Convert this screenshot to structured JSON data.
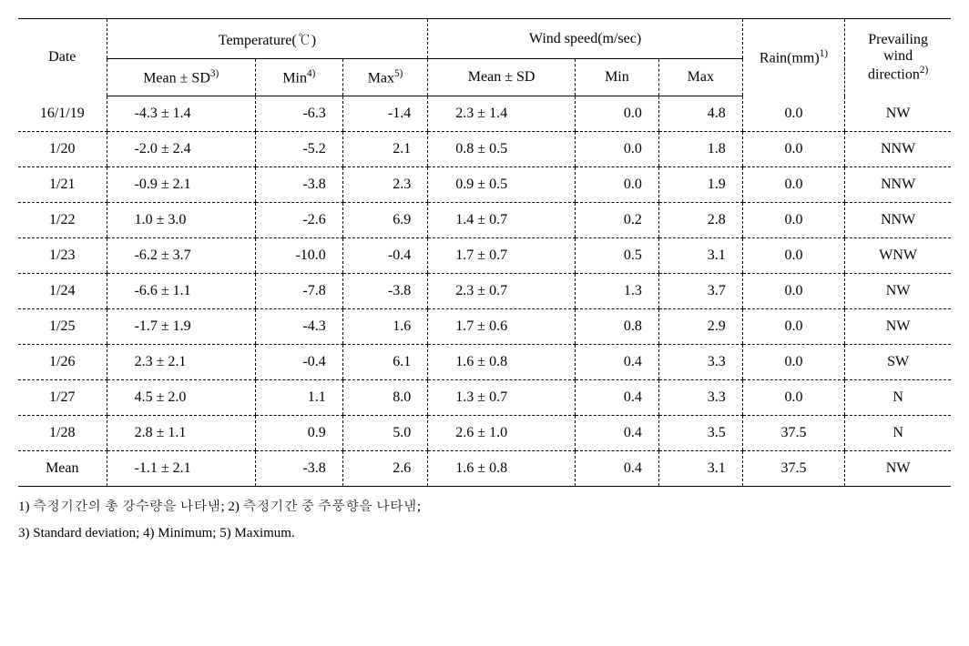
{
  "headers": {
    "date": "Date",
    "temperature_group": "Temperature(℃)",
    "windspeed_group": "Wind speed(m/sec)",
    "meansd_temp": "Mean ± SD",
    "meansd_temp_sup": "3)",
    "min_temp": "Min",
    "min_temp_sup": "4)",
    "max_temp": "Max",
    "max_temp_sup": "5)",
    "meansd_wind": "Mean ± SD",
    "min_wind": "Min",
    "max_wind": "Max",
    "rain": "Rain(mm)",
    "rain_sup": "1)",
    "wind_dir_line1": "Prevailing",
    "wind_dir_line2": "wind",
    "wind_dir_line3": "direction",
    "wind_dir_sup": "2)"
  },
  "rows": [
    {
      "date": "16/1/19",
      "t_mean": "-4.3 ± 1.4",
      "t_min": "-6.3",
      "t_max": "-1.4",
      "w_mean": "2.3 ± 1.4",
      "w_min": "0.0",
      "w_max": "4.8",
      "rain": "0.0",
      "dir": "NW"
    },
    {
      "date": "1/20",
      "t_mean": "-2.0 ± 2.4",
      "t_min": "-5.2",
      "t_max": "2.1",
      "w_mean": "0.8 ± 0.5",
      "w_min": "0.0",
      "w_max": "1.8",
      "rain": "0.0",
      "dir": "NNW"
    },
    {
      "date": "1/21",
      "t_mean": "-0.9 ± 2.1",
      "t_min": "-3.8",
      "t_max": "2.3",
      "w_mean": "0.9 ± 0.5",
      "w_min": "0.0",
      "w_max": "1.9",
      "rain": "0.0",
      "dir": "NNW"
    },
    {
      "date": "1/22",
      "t_mean": "1.0 ± 3.0",
      "t_min": "-2.6",
      "t_max": "6.9",
      "w_mean": "1.4 ± 0.7",
      "w_min": "0.2",
      "w_max": "2.8",
      "rain": "0.0",
      "dir": "NNW"
    },
    {
      "date": "1/23",
      "t_mean": "-6.2 ± 3.7",
      "t_min": "-10.0",
      "t_max": "-0.4",
      "w_mean": "1.7 ± 0.7",
      "w_min": "0.5",
      "w_max": "3.1",
      "rain": "0.0",
      "dir": "WNW"
    },
    {
      "date": "1/24",
      "t_mean": "-6.6 ± 1.1",
      "t_min": "-7.8",
      "t_max": "-3.8",
      "w_mean": "2.3 ± 0.7",
      "w_min": "1.3",
      "w_max": "3.7",
      "rain": "0.0",
      "dir": "NW"
    },
    {
      "date": "1/25",
      "t_mean": "-1.7 ± 1.9",
      "t_min": "-4.3",
      "t_max": "1.6",
      "w_mean": "1.7 ± 0.6",
      "w_min": "0.8",
      "w_max": "2.9",
      "rain": "0.0",
      "dir": "NW"
    },
    {
      "date": "1/26",
      "t_mean": "2.3 ± 2.1",
      "t_min": "-0.4",
      "t_max": "6.1",
      "w_mean": "1.6 ± 0.8",
      "w_min": "0.4",
      "w_max": "3.3",
      "rain": "0.0",
      "dir": "SW"
    },
    {
      "date": "1/27",
      "t_mean": "4.5 ± 2.0",
      "t_min": "1.1",
      "t_max": "8.0",
      "w_mean": "1.3 ± 0.7",
      "w_min": "0.4",
      "w_max": "3.3",
      "rain": "0.0",
      "dir": "N"
    },
    {
      "date": "1/28",
      "t_mean": "2.8 ± 1.1",
      "t_min": "0.9",
      "t_max": "5.0",
      "w_mean": "2.6 ± 1.0",
      "w_min": "0.4",
      "w_max": "3.5",
      "rain": "37.5",
      "dir": "N"
    },
    {
      "date": "Mean",
      "t_mean": "-1.1 ± 2.1",
      "t_min": "-3.8",
      "t_max": "2.6",
      "w_mean": "1.6 ± 0.8",
      "w_min": "0.4",
      "w_max": "3.1",
      "rain": "37.5",
      "dir": "NW"
    }
  ],
  "footnotes": {
    "line1": "1) 측정기간의 총 강수량을 나타냄; 2) 측정기간 중 주풍향을 나타냄;",
    "line2": "3) Standard deviation; 4) Minimum; 5) Maximum."
  }
}
